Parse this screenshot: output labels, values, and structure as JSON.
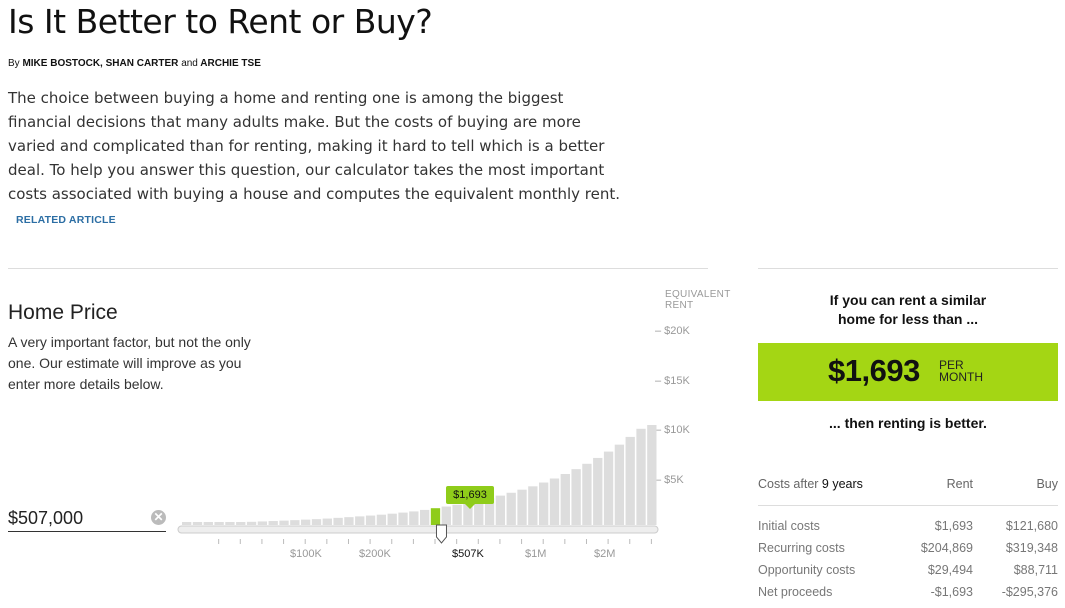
{
  "header": {
    "title": "Is It Better to Rent or Buy?",
    "byline_prefix": "By",
    "author1": "MIKE BOSTOCK,",
    "author2": "SHAN CARTER",
    "byline_and": "and",
    "author3": "ARCHIE TSE",
    "intro": "The choice between buying a home and renting one is among the biggest financial decisions that many adults make. But the costs of buying are more varied and complicated than for renting, making it hard to tell which is a better deal. To help you answer this question, our calculator takes the most important costs associated with buying a house and computes the equivalent monthly rent.",
    "related_link": "RELATED ARTICLE"
  },
  "home_price": {
    "title": "Home Price",
    "description": "A very important factor, but not the only one. Our estimate will improve as you enter more details below.",
    "input_value": "$507,000",
    "clear_icon": "clear-x-icon",
    "equivalent_label_line1": "EQUIVALENT",
    "equivalent_label_line2": "RENT",
    "y_ticks": [
      "– $20K",
      "– $15K",
      "– $10K",
      "– $5K"
    ],
    "tooltip": "$1,693",
    "x_ticks": [
      "$100K",
      "$200K",
      "$507K",
      "$1M",
      "$2M"
    ]
  },
  "chart_data": {
    "type": "bar",
    "title": "",
    "xlabel": "",
    "ylabel": "EQUIVALENT RENT",
    "ylim": [
      0,
      20000
    ],
    "y_ticks": [
      20000,
      15000,
      10000,
      5000
    ],
    "x_tick_labels": [
      "$100K",
      "$200K",
      "$507K",
      "$1M",
      "$2M"
    ],
    "selected_value": 1693,
    "selected_index": 23,
    "values": [
      150,
      180,
      200,
      230,
      260,
      290,
      320,
      360,
      400,
      440,
      490,
      540,
      590,
      650,
      720,
      790,
      870,
      950,
      1040,
      1140,
      1250,
      1370,
      1520,
      1693,
      1860,
      2040,
      2240,
      2460,
      2700,
      2960,
      3250,
      3560,
      3900,
      4280,
      4690,
      5140,
      5630,
      6170,
      6760,
      7400,
      8100,
      8880,
      9700,
      10600
    ],
    "highlight_color": "#8fcc1a",
    "bar_color": "#dddddd"
  },
  "result": {
    "title_line1": "If you can rent a similar",
    "title_line2": "home for less than ...",
    "amount": "$1,693",
    "per_line1": "PER",
    "per_line2": "MONTH",
    "footer": "... then renting is better.",
    "accent_color": "#a4d614"
  },
  "costs": {
    "header_prefix": "Costs after",
    "years": "9 years",
    "col_rent": "Rent",
    "col_buy": "Buy",
    "rows": [
      {
        "label": "Initial costs",
        "rent": "$1,693",
        "buy": "$121,680"
      },
      {
        "label": "Recurring costs",
        "rent": "$204,869",
        "buy": "$319,348"
      },
      {
        "label": "Opportunity costs",
        "rent": "$29,494",
        "buy": "$88,711"
      },
      {
        "label": "Net proceeds",
        "rent": "-$1,693",
        "buy": "-$295,376"
      }
    ]
  }
}
